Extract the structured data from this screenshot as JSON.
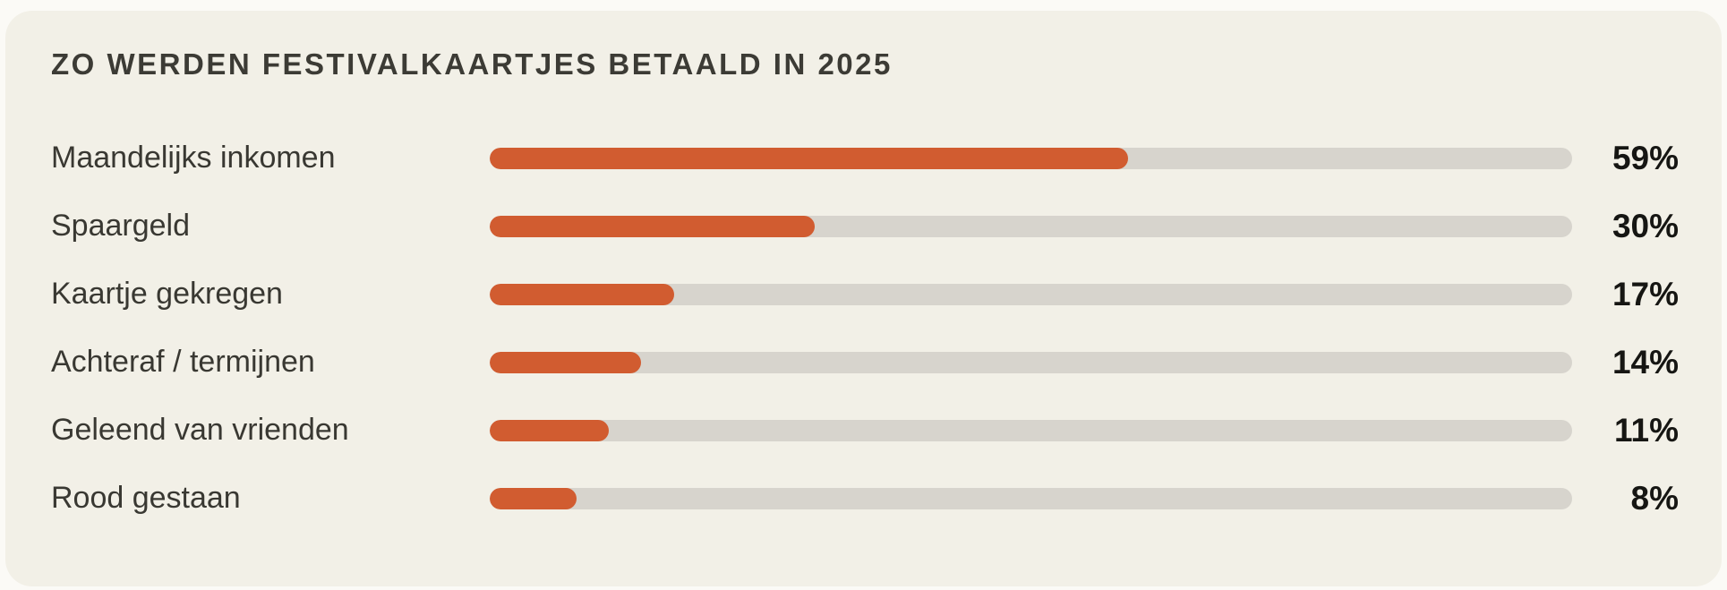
{
  "page": {
    "background_color": "#FBFAF6",
    "card_background_color": "#F2F0E7"
  },
  "chart_data": {
    "type": "bar",
    "orientation": "horizontal",
    "title": "ZO WERDEN FESTIVALKAARTJES BETAALD IN 2025",
    "categories": [
      "Maandelijks inkomen",
      "Spaargeld",
      "Kaartje gekregen",
      "Achteraf / termijnen",
      "Geleend van vrienden",
      "Rood gestaan"
    ],
    "values": [
      59,
      30,
      17,
      14,
      11,
      8
    ],
    "value_labels": [
      "59%",
      "30%",
      "17%",
      "14%",
      "11%",
      "8%"
    ],
    "xlabel": "",
    "ylabel": "",
    "xlim": [
      0,
      100
    ],
    "grid": false,
    "legend": false,
    "bar_color": "#D15C30",
    "track_color": "#D7D4CD",
    "title_color": "#3C3B35",
    "label_color": "#393832",
    "value_color": "#161613"
  }
}
